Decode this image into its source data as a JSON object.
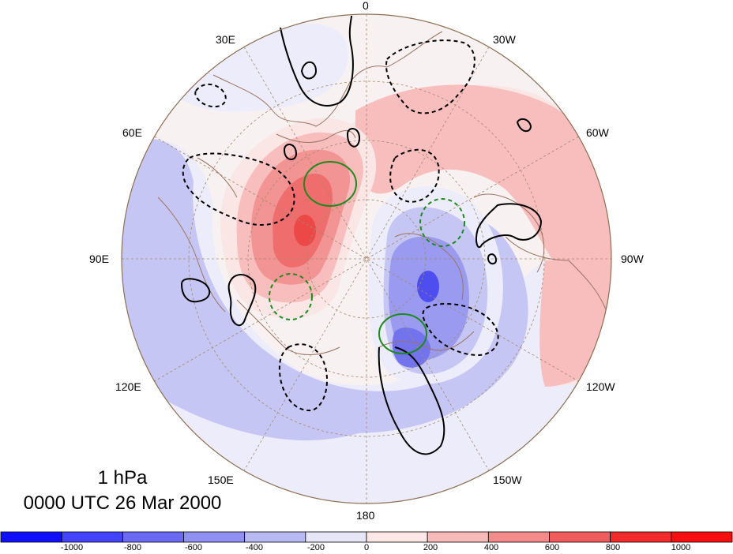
{
  "map": {
    "level_label": "1 hPa",
    "time_label": "0000 UTC 26 Mar 2000",
    "longitude_labels": {
      "lon_0": "0",
      "lon_30e": "30E",
      "lon_30w": "30W",
      "lon_60e": "60E",
      "lon_60w": "60W",
      "lon_90e": "90E",
      "lon_90w": "90W",
      "lon_120e": "120E",
      "lon_120w": "120W",
      "lon_150e": "150E",
      "lon_150w": "150W",
      "lon_180": "180"
    }
  },
  "colorbar": {
    "labels": [
      "-1000",
      "-800",
      "-600",
      "-400",
      "-200",
      "0",
      "200",
      "400",
      "600",
      "800",
      "1000"
    ],
    "colors": [
      "#1010ff",
      "#4343fb",
      "#6a6af5",
      "#9090f2",
      "#b9b9f3",
      "#e6e6f8",
      "#fde7e7",
      "#f8b9b9",
      "#f48a8a",
      "#f05c5c",
      "#f12a2a",
      "#f70f0f"
    ]
  },
  "fill_colors": {
    "neg_200": "#ececfa",
    "neg_400": "#c6c6f4",
    "neg_600": "#9a9af0",
    "neg_800": "#7373ee",
    "neg_1000": "#4d4df0",
    "pos_200": "#fbe6e6",
    "pos_400": "#f8bdbd",
    "pos_600": "#f29494",
    "pos_800": "#ef6d6d",
    "pos_1000": "#ed4848",
    "coast": "#9c7462",
    "black_contour": "#000000",
    "green_contour": "#1d8a1d"
  }
}
